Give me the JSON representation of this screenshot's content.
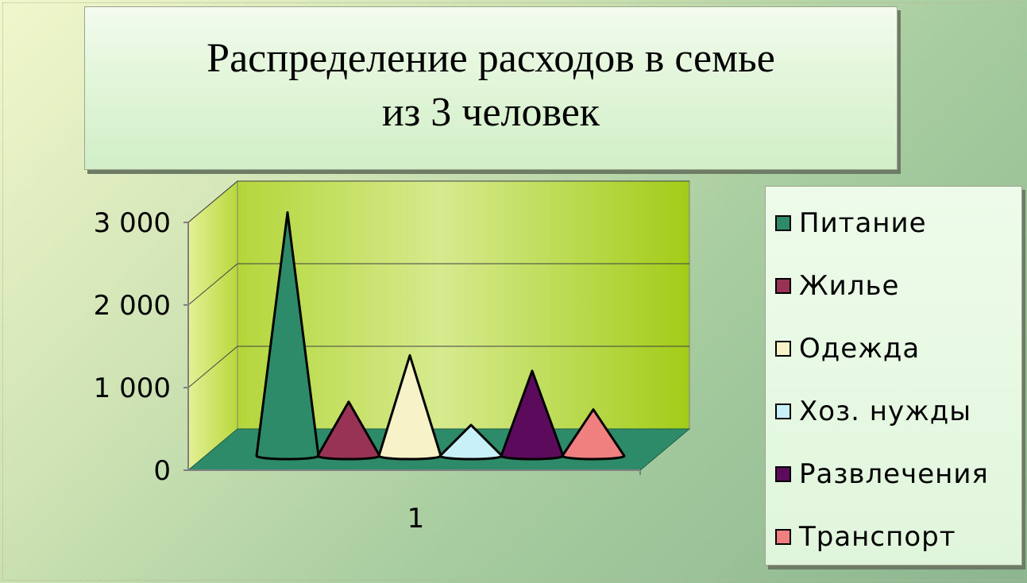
{
  "slide": {
    "title": "Распределение расходов в семье из 3 человек"
  },
  "chart_data": {
    "type": "bar",
    "title": "Распределение расходов в семье из 3 человек",
    "bar_shape": "cone",
    "categories": [
      "1"
    ],
    "series": [
      {
        "name": "Питание",
        "values": [
          3150
        ],
        "color": "#2e8b6a"
      },
      {
        "name": "Жилье",
        "values": [
          700
        ],
        "color": "#993355"
      },
      {
        "name": "Одежда",
        "values": [
          1300
        ],
        "color": "#f8f2c8"
      },
      {
        "name": "Хоз. нужды",
        "values": [
          400
        ],
        "color": "#c8f0f8"
      },
      {
        "name": "Развлечения",
        "values": [
          1100
        ],
        "color": "#5c0a5c"
      },
      {
        "name": "Транспорт",
        "values": [
          600
        ],
        "color": "#f08080"
      }
    ],
    "ylim": [
      0,
      3000
    ],
    "y_ticks": [
      "0",
      "1 000",
      "2 000",
      "3 000"
    ],
    "y_tick_values": [
      0,
      1000,
      2000,
      3000
    ],
    "x_tick_labels": [
      "1"
    ],
    "grid": true,
    "legend_position": "right",
    "wall_color": "#a8cc20",
    "floor_color": "#2e8b6a"
  }
}
